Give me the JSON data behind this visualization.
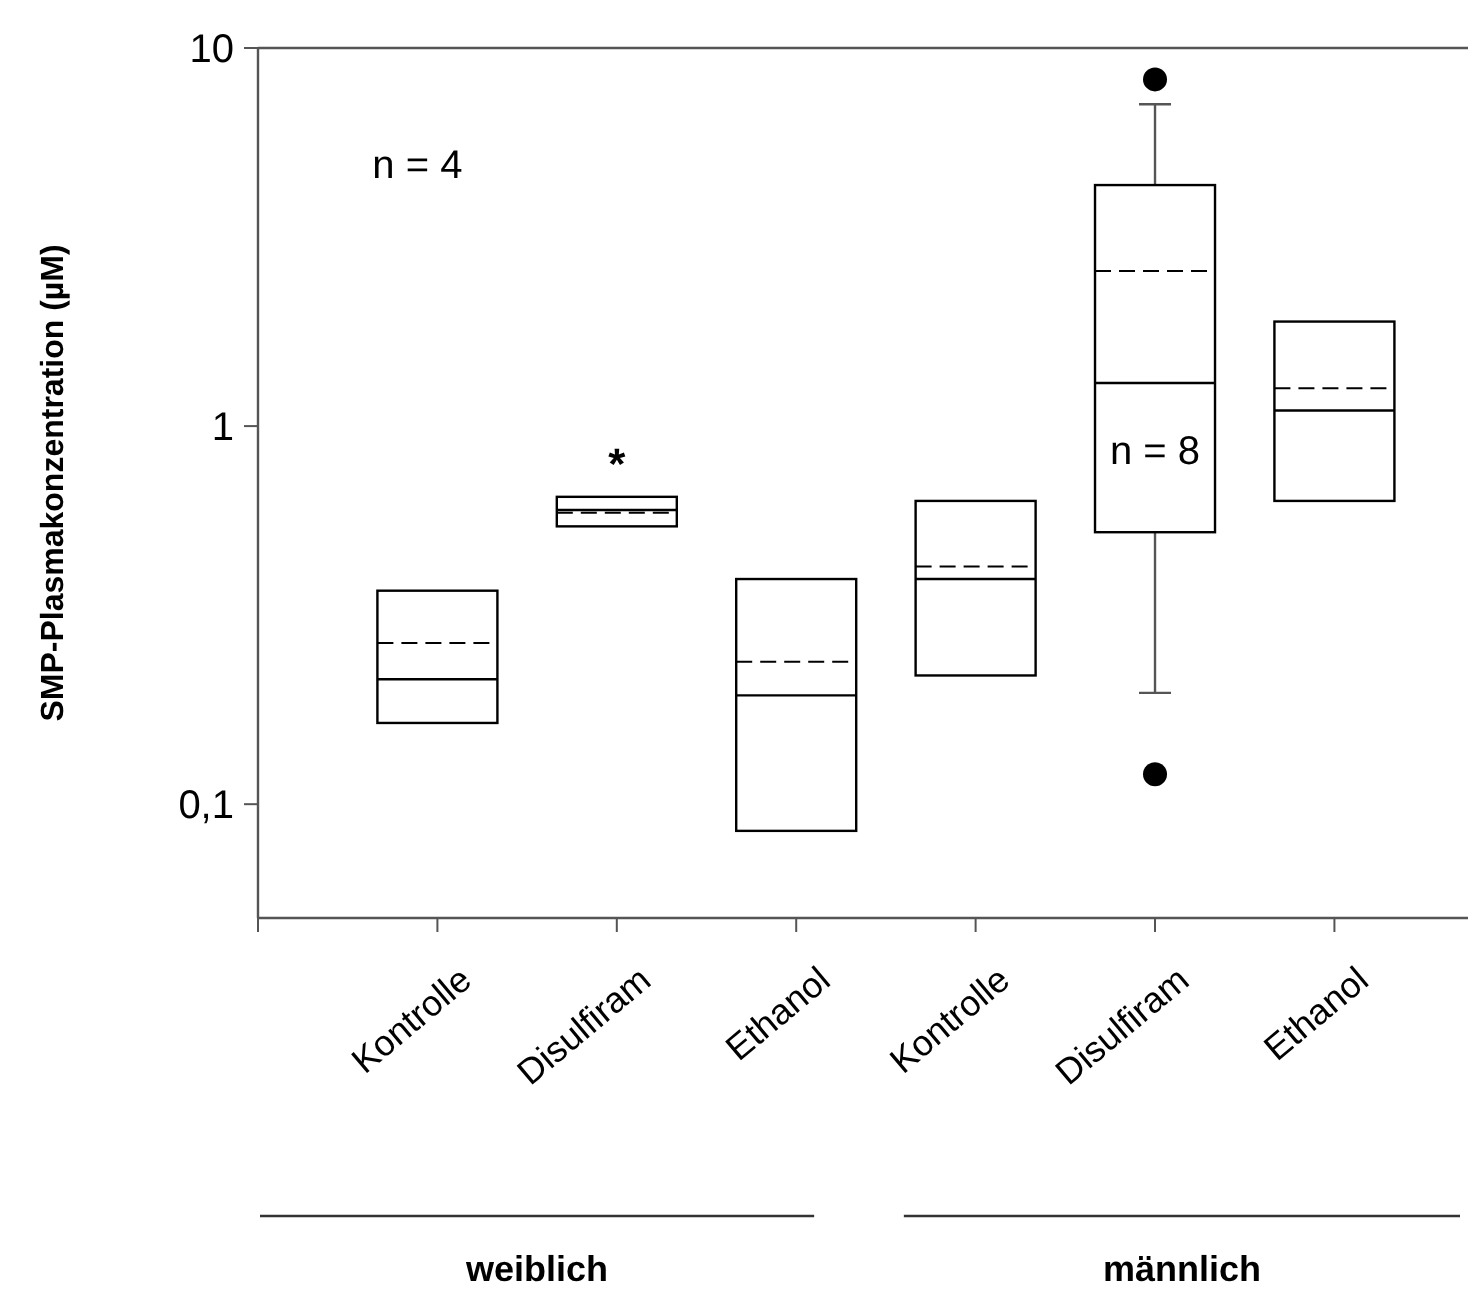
{
  "chart_data": {
    "type": "box",
    "ylabel": "SMP-Plasmakonzentration (µM)",
    "categories": [
      "Kontrolle",
      "Disulfiram",
      "Ethanol",
      "Kontrolle",
      "Disulfiram",
      "Ethanol"
    ],
    "boxes": [
      {
        "low": 0.164,
        "q1": 0.164,
        "median": 0.214,
        "q3": 0.367,
        "high": 0.367,
        "mean": 0.267
      },
      {
        "low": 0.543,
        "q1": 0.543,
        "median": 0.6,
        "q3": 0.65,
        "high": 0.65,
        "mean": 0.59
      },
      {
        "low": 0.085,
        "q1": 0.085,
        "median": 0.194,
        "q3": 0.394,
        "high": 0.394,
        "mean": 0.238
      },
      {
        "low": 0.219,
        "q1": 0.219,
        "median": 0.394,
        "q3": 0.634,
        "high": 0.634,
        "mean": 0.425
      },
      {
        "low": 0.197,
        "q1": 0.524,
        "median": 1.3,
        "q3": 4.34,
        "high": 7.1,
        "mean": 2.57,
        "outliers": [
          8.26,
          0.12
        ]
      },
      {
        "low": 0.634,
        "q1": 0.634,
        "median": 1.1,
        "q3": 1.89,
        "high": 1.89,
        "mean": 1.26
      }
    ],
    "log": "y",
    "ylim": [
      0.05,
      10
    ],
    "yticks": [
      {
        "value": 0.1,
        "label": "0,1"
      },
      1,
      10
    ],
    "grid": false,
    "annotations": [
      "n = 4",
      "*",
      "n = 8",
      "weiblich",
      "männlich"
    ]
  }
}
